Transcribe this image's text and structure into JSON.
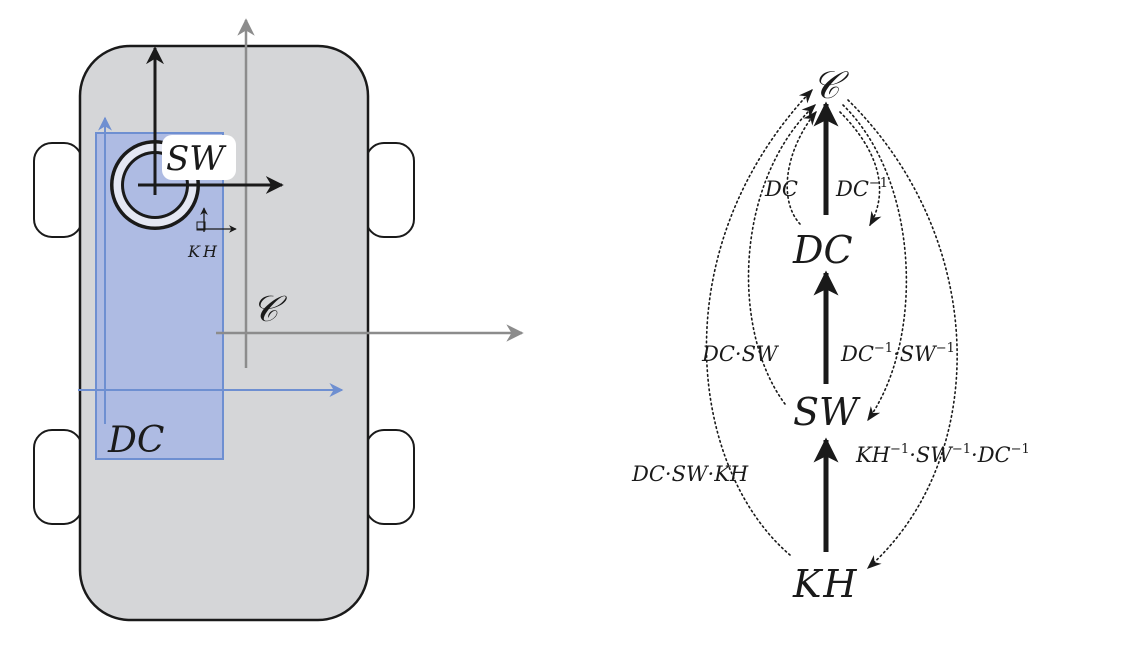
{
  "frames": {
    "world": "𝒞",
    "dc": "DC",
    "sw": "SW",
    "kh": "KH"
  },
  "graph": {
    "nodes": {
      "c": "𝒞",
      "dc": "DC",
      "sw": "SW",
      "kh": "KH"
    },
    "edge_labels": {
      "dc_to_c": "DC",
      "c_to_dc": "DC",
      "c_to_dc_exp": "−1",
      "sw_to_c": "DC·SW",
      "c_to_sw_a": "DC",
      "c_to_sw_a_exp": "−1",
      "c_to_sw_b": "·SW",
      "c_to_sw_b_exp": "−1",
      "kh_to_c": "DC·SW·KH",
      "c_to_kh_a": "KH",
      "c_to_kh_a_exp": "−1",
      "c_to_kh_b": "·SW",
      "c_to_kh_b_exp": "−1",
      "c_to_kh_c": "·DC",
      "c_to_kh_c_exp": "−1"
    }
  },
  "colors": {
    "car_body": "#d5d6d8",
    "outline": "#1a1a1a",
    "blue_fill": "#aebbe3",
    "blue_frame": "#6e8fd1",
    "world_axis": "#8c8c8c",
    "wheel_ring": "#e4e7f3"
  }
}
